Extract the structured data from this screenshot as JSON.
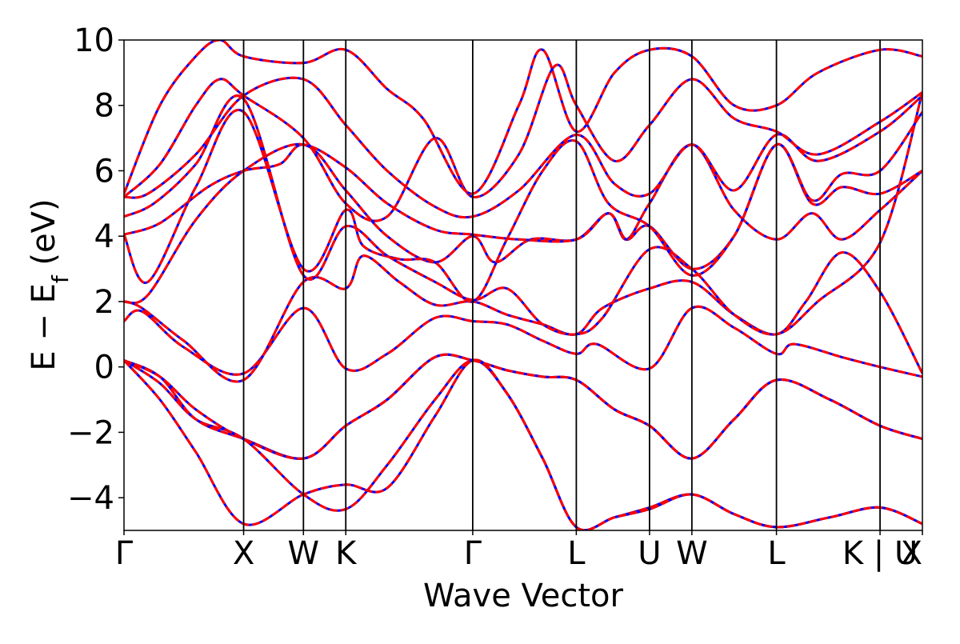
{
  "chart_data": {
    "type": "line",
    "title": "",
    "xlabel": "Wave Vector",
    "ylabel": "E − E_f (eV)",
    "ylabel_main": "E − E",
    "ylabel_sub": "f",
    "ylabel_unit": " (eV)",
    "ylim": [
      -5,
      10
    ],
    "yticks": [
      -4,
      -2,
      0,
      2,
      4,
      6,
      8,
      10
    ],
    "ytick_labels": [
      "−4",
      "−2",
      "0",
      "2",
      "4",
      "6",
      "8",
      "10"
    ],
    "grid": false,
    "legend": "none",
    "kpath": [
      {
        "label": "Γ",
        "x": 0.0
      },
      {
        "label": "X",
        "x": 1.0
      },
      {
        "label": "W",
        "x": 1.5
      },
      {
        "label": "K",
        "x": 1.854
      },
      {
        "label": "Γ",
        "x": 2.915
      },
      {
        "label": "L",
        "x": 3.781
      },
      {
        "label": "U",
        "x": 4.393
      },
      {
        "label": "W",
        "x": 4.747
      },
      {
        "label": "L",
        "x": 5.454
      },
      {
        "label": "K | U",
        "x": 6.32
      },
      {
        "label": "X",
        "x": 6.674
      }
    ],
    "colors": {
      "series_a": "#0000ff",
      "series_b": "#ff0000",
      "vlines": "#000000"
    },
    "bands": [
      [
        [
          0,
          0.2
        ],
        [
          0.3,
          -0.5
        ],
        [
          0.6,
          -1.6
        ],
        [
          1.0,
          -2.2
        ],
        [
          1.5,
          -3.9
        ],
        [
          1.854,
          -4.35
        ],
        [
          2.2,
          -3.0
        ],
        [
          2.6,
          -1.0
        ],
        [
          2.915,
          0.2
        ],
        [
          3.2,
          -0.8
        ],
        [
          3.5,
          -2.8
        ],
        [
          3.781,
          -4.9
        ],
        [
          4.1,
          -4.6
        ],
        [
          4.393,
          -4.3
        ],
        [
          4.747,
          -3.9
        ],
        [
          5.1,
          -4.5
        ],
        [
          5.454,
          -4.9
        ],
        [
          5.9,
          -4.6
        ],
        [
          6.32,
          -4.3
        ],
        [
          6.674,
          -4.8
        ]
      ],
      [
        [
          0,
          0.2
        ],
        [
          0.3,
          -1.0
        ],
        [
          0.6,
          -2.6
        ],
        [
          1.0,
          -4.8
        ],
        [
          1.5,
          -3.9
        ],
        [
          1.854,
          -3.6
        ],
        [
          2.2,
          -3.7
        ],
        [
          2.6,
          -1.5
        ],
        [
          2.915,
          0.2
        ],
        [
          3.2,
          -0.8
        ],
        [
          3.5,
          -2.8
        ],
        [
          3.781,
          -4.9
        ],
        [
          4.1,
          -4.6
        ],
        [
          4.393,
          -4.35
        ],
        [
          4.747,
          -3.9
        ],
        [
          5.1,
          -4.5
        ],
        [
          5.454,
          -4.9
        ],
        [
          5.9,
          -4.6
        ],
        [
          6.32,
          -4.3
        ],
        [
          6.674,
          -4.8
        ]
      ],
      [
        [
          0,
          0.2
        ],
        [
          0.3,
          -0.3
        ],
        [
          0.6,
          -1.6
        ],
        [
          1.0,
          -2.2
        ],
        [
          1.5,
          -2.8
        ],
        [
          1.854,
          -1.8
        ],
        [
          2.2,
          -1.0
        ],
        [
          2.6,
          0.3
        ],
        [
          2.915,
          0.2
        ],
        [
          3.2,
          -0.1
        ],
        [
          3.5,
          -0.3
        ],
        [
          3.781,
          -0.4
        ],
        [
          4.1,
          -1.3
        ],
        [
          4.393,
          -1.8
        ],
        [
          4.747,
          -2.8
        ],
        [
          5.1,
          -1.6
        ],
        [
          5.454,
          -0.4
        ],
        [
          5.9,
          -1.0
        ],
        [
          6.32,
          -1.8
        ],
        [
          6.674,
          -2.2
        ]
      ],
      [
        [
          0,
          0.2
        ],
        [
          0.3,
          -0.3
        ],
        [
          0.6,
          -1.3
        ],
        [
          1.0,
          -2.2
        ],
        [
          1.5,
          -2.8
        ],
        [
          1.854,
          -1.8
        ],
        [
          2.2,
          -1.0
        ],
        [
          2.6,
          0.3
        ],
        [
          2.915,
          0.2
        ],
        [
          3.2,
          -0.1
        ],
        [
          3.5,
          -0.3
        ],
        [
          3.781,
          -0.4
        ],
        [
          4.1,
          -1.3
        ],
        [
          4.393,
          -1.8
        ],
        [
          4.747,
          -2.8
        ],
        [
          5.1,
          -1.6
        ],
        [
          5.454,
          -0.4
        ],
        [
          5.9,
          -1.0
        ],
        [
          6.32,
          -1.8
        ],
        [
          6.674,
          -2.2
        ]
      ],
      [
        [
          0,
          1.4
        ],
        [
          0.15,
          1.7
        ],
        [
          0.5,
          0.6
        ],
        [
          1.0,
          -0.2
        ],
        [
          1.5,
          1.8
        ],
        [
          1.854,
          -0.05
        ],
        [
          2.2,
          0.4
        ],
        [
          2.6,
          1.5
        ],
        [
          2.915,
          1.4
        ],
        [
          3.2,
          1.3
        ],
        [
          3.5,
          0.8
        ],
        [
          3.781,
          0.4
        ],
        [
          3.95,
          0.7
        ],
        [
          4.393,
          -0.05
        ],
        [
          4.747,
          1.8
        ],
        [
          5.1,
          1.2
        ],
        [
          5.454,
          0.4
        ],
        [
          5.6,
          0.7
        ],
        [
          6.0,
          0.3
        ],
        [
          6.32,
          0.0
        ],
        [
          6.674,
          -0.3
        ]
      ],
      [
        [
          0,
          2.0
        ],
        [
          0.15,
          1.8
        ],
        [
          0.5,
          0.8
        ],
        [
          1.0,
          -0.4
        ],
        [
          1.5,
          2.6
        ],
        [
          1.854,
          2.4
        ],
        [
          2.0,
          3.4
        ],
        [
          2.3,
          2.6
        ],
        [
          2.6,
          1.9
        ],
        [
          2.915,
          2.0
        ],
        [
          3.2,
          1.6
        ],
        [
          3.5,
          1.3
        ],
        [
          3.781,
          1.0
        ],
        [
          4.0,
          1.8
        ],
        [
          4.393,
          2.4
        ],
        [
          4.747,
          2.6
        ],
        [
          5.1,
          1.6
        ],
        [
          5.454,
          1.0
        ],
        [
          5.7,
          2.0
        ],
        [
          6.0,
          3.5
        ],
        [
          6.32,
          2.3
        ],
        [
          6.674,
          -0.2
        ]
      ],
      [
        [
          0,
          2.0
        ],
        [
          0.2,
          2.2
        ],
        [
          0.6,
          4.5
        ],
        [
          1.0,
          6.0
        ],
        [
          1.5,
          6.8
        ],
        [
          1.854,
          5.4
        ],
        [
          2.2,
          4.0
        ],
        [
          2.6,
          3.2
        ],
        [
          2.915,
          4.0
        ],
        [
          3.1,
          3.2
        ],
        [
          3.4,
          3.9
        ],
        [
          3.781,
          3.9
        ],
        [
          4.05,
          4.7
        ],
        [
          4.2,
          3.9
        ],
        [
          4.393,
          5.0
        ],
        [
          4.747,
          6.8
        ],
        [
          5.1,
          4.8
        ],
        [
          5.454,
          3.9
        ],
        [
          5.75,
          4.7
        ],
        [
          6.0,
          3.9
        ],
        [
          6.32,
          4.8
        ],
        [
          6.674,
          6.0
        ]
      ],
      [
        [
          0,
          4.05
        ],
        [
          0.3,
          4.4
        ],
        [
          0.7,
          5.5
        ],
        [
          1.0,
          6.0
        ],
        [
          1.3,
          6.2
        ],
        [
          1.5,
          6.8
        ],
        [
          1.854,
          6.1
        ],
        [
          2.2,
          5.0
        ],
        [
          2.6,
          4.2
        ],
        [
          2.915,
          4.05
        ],
        [
          3.3,
          3.9
        ],
        [
          3.781,
          3.9
        ],
        [
          4.05,
          4.7
        ],
        [
          4.2,
          3.9
        ],
        [
          4.393,
          4.3
        ],
        [
          4.747,
          3.0
        ],
        [
          5.1,
          4.0
        ],
        [
          5.454,
          6.8
        ],
        [
          5.75,
          5.0
        ],
        [
          6.0,
          5.5
        ],
        [
          6.32,
          5.3
        ],
        [
          6.674,
          6.0
        ]
      ],
      [
        [
          0,
          4.05
        ],
        [
          0.2,
          2.6
        ],
        [
          0.6,
          5.5
        ],
        [
          1.0,
          7.8
        ],
        [
          1.5,
          3.0
        ],
        [
          1.854,
          4.8
        ],
        [
          2.0,
          3.7
        ],
        [
          2.3,
          3.3
        ],
        [
          2.6,
          3.2
        ],
        [
          2.915,
          2.0
        ],
        [
          3.2,
          3.9
        ],
        [
          3.5,
          6.0
        ],
        [
          3.781,
          6.9
        ],
        [
          4.05,
          5.0
        ],
        [
          4.393,
          4.3
        ],
        [
          4.747,
          2.8
        ],
        [
          5.1,
          4.0
        ],
        [
          5.454,
          6.8
        ],
        [
          5.75,
          5.1
        ],
        [
          6.0,
          5.9
        ],
        [
          6.32,
          6.0
        ],
        [
          6.674,
          7.8
        ]
      ],
      [
        [
          0,
          4.6
        ],
        [
          0.25,
          5.0
        ],
        [
          0.6,
          6.2
        ],
        [
          1.0,
          8.2
        ],
        [
          1.5,
          2.8
        ],
        [
          1.854,
          4.3
        ],
        [
          2.2,
          3.4
        ],
        [
          2.6,
          2.6
        ],
        [
          2.915,
          2.05
        ],
        [
          3.2,
          2.4
        ],
        [
          3.5,
          1.3
        ],
        [
          3.781,
          1.0
        ],
        [
          4.0,
          1.5
        ],
        [
          4.393,
          3.6
        ],
        [
          4.747,
          3.0
        ],
        [
          5.1,
          1.6
        ],
        [
          5.454,
          1.0
        ],
        [
          5.8,
          2.0
        ],
        [
          6.32,
          3.8
        ],
        [
          6.674,
          8.4
        ]
      ],
      [
        [
          0,
          5.2
        ],
        [
          0.2,
          5.3
        ],
        [
          0.6,
          6.5
        ],
        [
          1.0,
          8.3
        ],
        [
          1.5,
          8.8
        ],
        [
          1.854,
          7.4
        ],
        [
          2.2,
          6.0
        ],
        [
          2.6,
          4.9
        ],
        [
          2.915,
          4.6
        ],
        [
          3.3,
          5.4
        ],
        [
          3.781,
          7.1
        ],
        [
          4.1,
          5.6
        ],
        [
          4.393,
          5.3
        ],
        [
          4.747,
          6.8
        ],
        [
          5.1,
          5.4
        ],
        [
          5.454,
          7.1
        ],
        [
          5.8,
          6.3
        ],
        [
          6.32,
          7.2
        ],
        [
          6.674,
          8.3
        ]
      ],
      [
        [
          0,
          5.2
        ],
        [
          0.3,
          6.2
        ],
        [
          0.6,
          8.0
        ],
        [
          0.8,
          8.8
        ],
        [
          1.0,
          8.3
        ],
        [
          1.5,
          7.0
        ],
        [
          1.854,
          5.0
        ],
        [
          2.2,
          4.6
        ],
        [
          2.6,
          7.0
        ],
        [
          2.915,
          5.2
        ],
        [
          3.3,
          6.5
        ],
        [
          3.6,
          9.2
        ],
        [
          3.781,
          8.0
        ],
        [
          4.1,
          6.3
        ],
        [
          4.393,
          7.4
        ],
        [
          4.747,
          8.8
        ],
        [
          5.1,
          7.6
        ],
        [
          5.454,
          7.2
        ],
        [
          5.8,
          6.5
        ],
        [
          6.32,
          7.5
        ],
        [
          6.674,
          8.4
        ]
      ],
      [
        [
          0,
          5.3
        ],
        [
          0.3,
          8.0
        ],
        [
          0.6,
          9.5
        ],
        [
          0.8,
          10.0
        ],
        [
          1.0,
          9.5
        ],
        [
          1.5,
          9.3
        ],
        [
          1.854,
          9.7
        ],
        [
          2.2,
          8.5
        ],
        [
          2.5,
          7.6
        ],
        [
          2.915,
          5.3
        ],
        [
          3.3,
          8.0
        ],
        [
          3.5,
          9.7
        ],
        [
          3.781,
          7.2
        ],
        [
          4.1,
          9.0
        ],
        [
          4.393,
          9.7
        ],
        [
          4.747,
          9.5
        ],
        [
          5.1,
          8.0
        ],
        [
          5.454,
          8.0
        ],
        [
          5.8,
          9.0
        ],
        [
          6.32,
          9.7
        ],
        [
          6.674,
          9.5
        ]
      ]
    ]
  }
}
